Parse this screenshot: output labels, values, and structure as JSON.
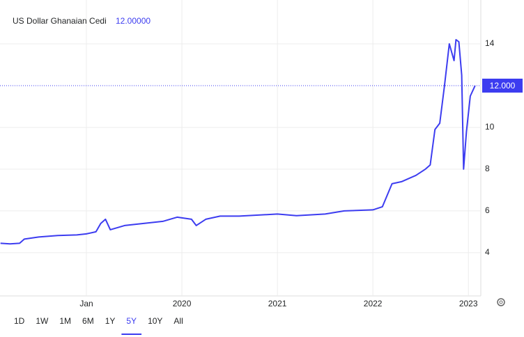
{
  "chart_data": {
    "type": "line",
    "title": "US Dollar Ghanaian Cedi",
    "price": "12.00000",
    "color": "#3c3cf0",
    "x": [
      2018.1,
      2018.2,
      2018.3,
      2018.35,
      2018.5,
      2018.7,
      2018.9,
      2019.0,
      2019.1,
      2019.15,
      2019.2,
      2019.25,
      2019.4,
      2019.6,
      2019.8,
      2019.95,
      2020.1,
      2020.15,
      2020.25,
      2020.4,
      2020.6,
      2021.0,
      2021.2,
      2021.5,
      2021.7,
      2022.0,
      2022.1,
      2022.2,
      2022.3,
      2022.45,
      2022.55,
      2022.6,
      2022.65,
      2022.7,
      2022.75,
      2022.8,
      2022.85,
      2022.87,
      2022.9,
      2022.93,
      2022.95,
      2022.98,
      2023.02,
      2023.07
    ],
    "values": [
      4.45,
      4.42,
      4.45,
      4.65,
      4.75,
      4.82,
      4.85,
      4.9,
      5.0,
      5.4,
      5.6,
      5.1,
      5.3,
      5.4,
      5.5,
      5.7,
      5.6,
      5.3,
      5.6,
      5.75,
      5.75,
      5.85,
      5.77,
      5.85,
      6.0,
      6.05,
      6.2,
      7.3,
      7.4,
      7.7,
      8.0,
      8.2,
      9.9,
      10.2,
      12.0,
      14.0,
      13.2,
      14.2,
      14.1,
      12.5,
      8.0,
      9.8,
      11.5,
      12.0
    ],
    "xlim": [
      2018.095,
      2023.13
    ],
    "xticks": [
      {
        "value": 2019,
        "label": "Jan"
      },
      2020,
      2021,
      2022,
      2023
    ],
    "ylim": [
      1.93,
      16.1
    ],
    "yticks": [
      4,
      6,
      8,
      10,
      14
    ],
    "reference": {
      "value": 12,
      "label": "12.000"
    },
    "grid": true,
    "ranges": [
      "1D",
      "1W",
      "1M",
      "6M",
      "1Y",
      "5Y",
      "10Y",
      "All"
    ],
    "selected_range": "5Y"
  }
}
